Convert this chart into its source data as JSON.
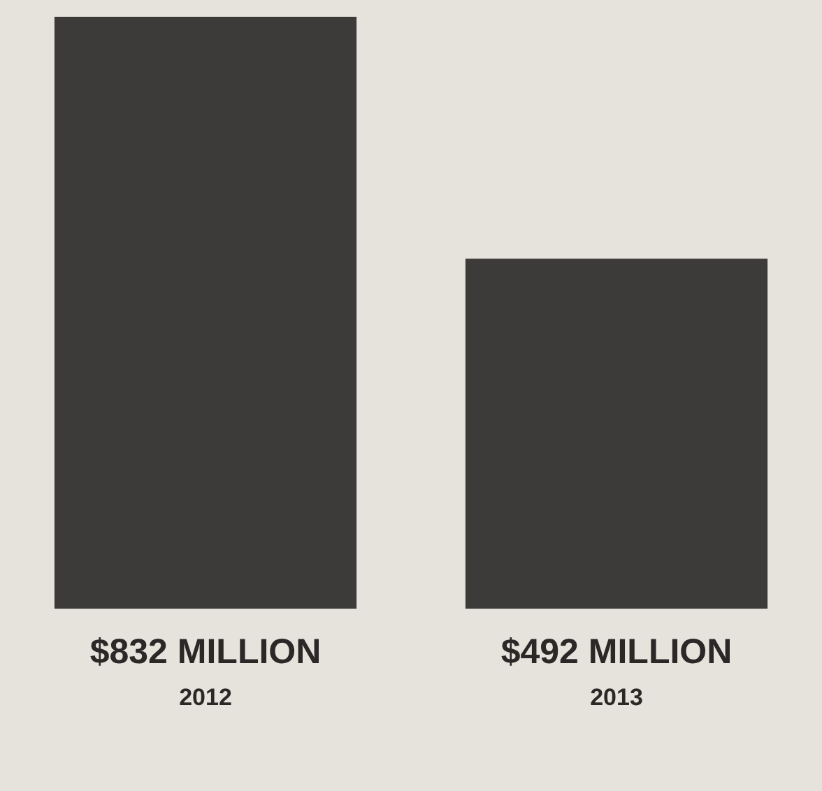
{
  "chart_data": {
    "type": "bar",
    "categories": [
      "2012",
      "2013"
    ],
    "values": [
      832,
      492
    ],
    "color": "#3d3a3a",
    "value_labels": [
      "$832 MILLION",
      "$492 MILLION"
    ],
    "grid": false,
    "legend": false
  }
}
